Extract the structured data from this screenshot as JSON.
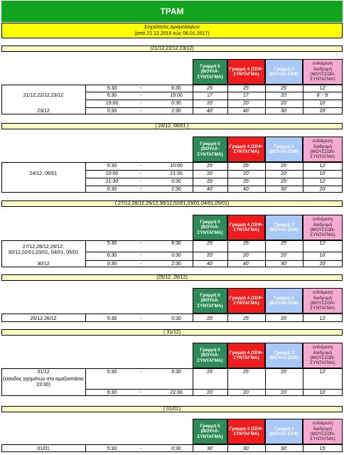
{
  "title": "ΤΡΑΜ",
  "subtitle_line1": "Συχνότητες Δρομολογίων",
  "subtitle_line2": "(από 21.12.2016 εώς 06.01.2017)",
  "columns": {
    "c5": "Γραμμή 5 (ΒΟΥΛΑ-ΣΥΝΤΑΓΜΑ)",
    "c4": "Γραμμή 4 (ΣΕΦ-ΣΥΝΤΑΓΜΑ)",
    "c3": "Γραμμή 3 (ΒΟΥΛΑ-ΣΕΦ)",
    "cx": "ενδιάμεση διαδρομή (ΜΟΥΣΣΩΝ-ΣΥΝΤΑΓΜΑ)"
  },
  "sections": [
    {
      "title": "(21/12,22/12,23/12)",
      "rows": [
        {
          "label": "",
          "from": "5:30",
          "dash": "-",
          "to": "6:30",
          "l5": "25'",
          "l4": "25'",
          "l3": "25'",
          "lx": "12'"
        },
        {
          "label": "21/12,22/12,23/12",
          "from": "6:30",
          "dash": "-",
          "to": "19:00",
          "l5": "17'",
          "l4": "17'",
          "l3": "20'",
          "lx": "8' - 9'"
        },
        {
          "label": "",
          "from": "19:00",
          "dash": "-",
          "to": "0:30",
          "l5": "20'",
          "l4": "20'",
          "l3": "20'",
          "lx": "10'"
        },
        {
          "label": "23/12",
          "from": "0:30",
          "dash": "-",
          "to": "2:30",
          "l5": "40'",
          "l4": "40'",
          "l3": "30'",
          "lx": "20'"
        }
      ]
    },
    {
      "title": "( 24/12, 06/01 )",
      "rows": [
        {
          "label": "",
          "from": "5:30",
          "dash": "-",
          "to": "10:00",
          "l5": "25'",
          "l4": "25'",
          "l3": "25'",
          "lx": "12'"
        },
        {
          "label": "24/12, 06/01",
          "from": "10:00",
          "dash": "-",
          "to": "21:30",
          "l5": "20'",
          "l4": "20'",
          "l3": "20'",
          "lx": "10'"
        },
        {
          "label": "",
          "from": "21:30",
          "dash": "-",
          "to": "0:30",
          "l5": "25'",
          "l4": "25'",
          "l3": "25'",
          "lx": "12'"
        },
        {
          "label": "",
          "from": "0:30",
          "dash": "-",
          "to": "2:30",
          "l5": "40'",
          "l4": "40'",
          "l3": "30'",
          "lx": "20'"
        }
      ]
    },
    {
      "title": "( 27/12,28/12,29/12,30/12,02/01,03/01,04/01,05/01)",
      "rows": [
        {
          "label": "",
          "from": "5:30",
          "dash": "-",
          "to": "6:30",
          "l5": "25'",
          "l4": "25'",
          "l3": "25'",
          "lx": "12'"
        },
        {
          "label": "",
          "from": "6:30",
          "dash": "-",
          "to": "0:30",
          "l5": "20'",
          "l4": "20'",
          "l3": "20'",
          "lx": "10'"
        },
        {
          "label": "30/12",
          "from": "0:30",
          "dash": "-",
          "to": "2:30",
          "l5": "40'",
          "l4": "40'",
          "l3": "30'",
          "lx": "20'"
        }
      ],
      "group_label": "27/12,28/12,29/12, 30/12,02/01,03/01, 04/01, 05/01"
    },
    {
      "title": "(25/12, 26/12)",
      "rows": [
        {
          "label": "25/12,26/12",
          "from": "5:30",
          "dash": "-",
          "to": "0:30",
          "l5": "25'",
          "l4": "25'",
          "l3": "25'",
          "lx": "12'"
        }
      ]
    },
    {
      "title": "( 31/12)",
      "rows": [
        {
          "label": "31/12",
          "from": "5:30",
          "dash": "-",
          "to": "6:30",
          "l5": "25'",
          "l4": "25'",
          "l3": "25'",
          "lx": "12'"
        },
        {
          "label": "",
          "from": "6:30",
          "dash": "-",
          "to": "22:30",
          "l5": "20'",
          "l4": "20'",
          "l3": "20'",
          "lx": "10'"
        }
      ],
      "group_label": "(είσοδος οχημάτων στο αμαξοστάσιο 23:30)"
    },
    {
      "title": "( 01/01)",
      "rows": [
        {
          "label": "01/01",
          "from": "5:30",
          "dash": "-",
          "to": "0:30",
          "l5": "30'",
          "l4": "30'",
          "l3": "30'",
          "lx": "15'"
        }
      ]
    }
  ]
}
